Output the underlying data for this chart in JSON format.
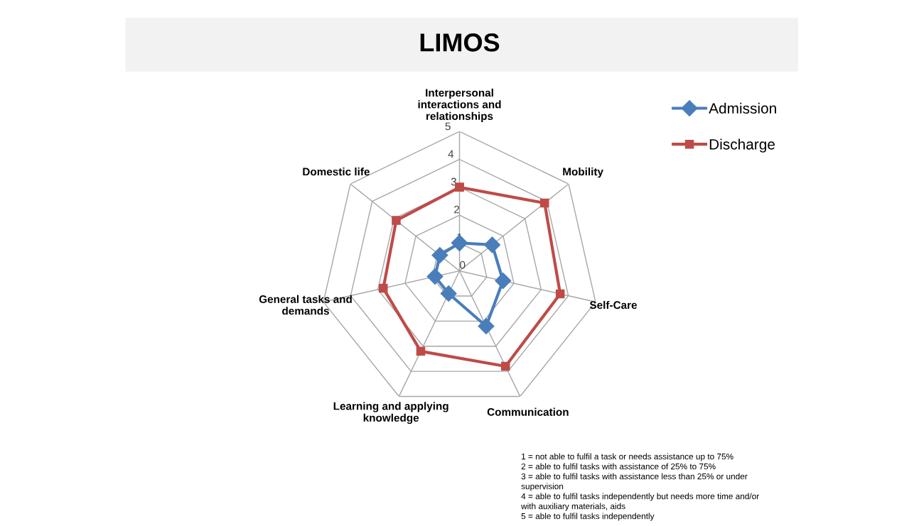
{
  "chart_data": {
    "type": "radar",
    "title": "LIMOS",
    "categories": [
      "Interpersonal\ninteractions and\nrelationships",
      "Mobility",
      "Self-Care",
      "Communication",
      "Learning and applying\nknowledge",
      "General tasks and\ndemands",
      "Domestic life"
    ],
    "series": [
      {
        "name": "Admission",
        "color": "#4a7ebb",
        "marker": "diamond",
        "values": [
          1.0,
          1.5,
          1.6,
          2.2,
          0.9,
          0.9,
          0.9
        ]
      },
      {
        "name": "Discharge",
        "color": "#be4b48",
        "marker": "square",
        "values": [
          3.0,
          3.9,
          3.7,
          3.8,
          3.2,
          2.8,
          2.9
        ]
      }
    ],
    "ylim": [
      0,
      5
    ],
    "yticks": [
      0,
      1,
      2,
      3,
      4,
      5
    ],
    "grid": true,
    "legend": "top right",
    "annotations": [
      "1 = not able to fulfil a task or needs assistance up to 75%\n2 = able to fulfil tasks with assistance of 25% to 75%\n3 = able to fulfil tasks with assistance less than 25% or under\nsupervision\n4 = able to fulfil tasks independently but needs more time and/or\nwith auxiliary materials, aids\n5 = able to fulfil tasks independently"
    ]
  }
}
